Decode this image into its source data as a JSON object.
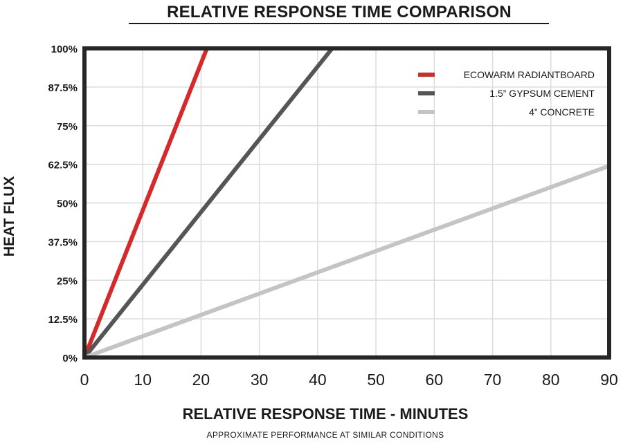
{
  "chart_data": {
    "type": "line",
    "title": "RELATIVE RESPONSE TIME COMPARISON",
    "xlabel": "RELATIVE RESPONSE TIME - MINUTES",
    "ylabel": "HEAT FLUX",
    "subtitle": "APPROXIMATE PERFORMANCE AT SIMILAR CONDITIONS",
    "x_ticks": [
      0,
      10,
      20,
      30,
      40,
      50,
      60,
      70,
      80,
      90
    ],
    "y_ticks": [
      0,
      12.5,
      25,
      37.5,
      50,
      62.5,
      75,
      87.5,
      100
    ],
    "y_tick_labels": [
      "0%",
      "12.5%",
      "25%",
      "37.5%",
      "50%",
      "62.5%",
      "75%",
      "87.5%",
      "100%"
    ],
    "xlim": [
      0,
      90
    ],
    "ylim": [
      0,
      100
    ],
    "grid": true,
    "legend_position": "top-right",
    "series": [
      {
        "name": "ECOWARM RADIANTBOARD",
        "color": "#d42a2a",
        "x": [
          0,
          21
        ],
        "y": [
          0,
          100
        ]
      },
      {
        "name": "1.5” GYPSUM CEMENT",
        "color": "#555555",
        "x": [
          0,
          42.5
        ],
        "y": [
          0,
          100
        ]
      },
      {
        "name": "4” CONCRETE",
        "color": "#c4c4c4",
        "x": [
          0,
          90
        ],
        "y": [
          0,
          62
        ]
      }
    ]
  }
}
